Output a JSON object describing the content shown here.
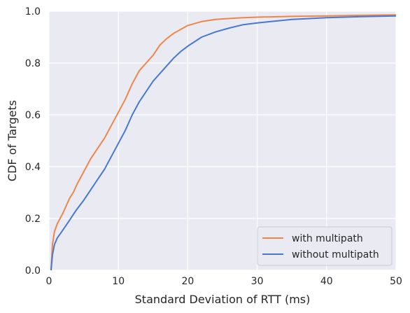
{
  "chart_data": {
    "type": "line",
    "title": "",
    "xlabel": "Standard Deviation of RTT (ms)",
    "ylabel": "CDF of Targets",
    "xlim": [
      0,
      50
    ],
    "ylim": [
      0,
      1
    ],
    "xticks": [
      "0",
      "10",
      "20",
      "30",
      "40",
      "50"
    ],
    "yticks": [
      "0.0",
      "0.2",
      "0.4",
      "0.6",
      "0.8",
      "1.0"
    ],
    "grid": true,
    "legend_position": "bottom-right",
    "series": [
      {
        "name": "with multipath",
        "color": "#ee854a",
        "x": [
          0.3,
          0.5,
          0.8,
          1.2,
          1.6,
          2.0,
          2.5,
          3.0,
          3.5,
          4.0,
          5.0,
          6.0,
          7.0,
          8.0,
          9.0,
          10.0,
          11.0,
          12.0,
          13.0,
          14.0,
          15.0,
          16.0,
          17.0,
          18.0,
          19.0,
          20.0,
          22.0,
          24.0,
          26.0,
          28.0,
          30.0,
          35.0,
          40.0,
          45.0,
          50.0
        ],
        "y": [
          0.0,
          0.1,
          0.15,
          0.18,
          0.2,
          0.22,
          0.25,
          0.28,
          0.3,
          0.33,
          0.38,
          0.43,
          0.47,
          0.51,
          0.56,
          0.61,
          0.66,
          0.72,
          0.77,
          0.8,
          0.83,
          0.87,
          0.895,
          0.915,
          0.93,
          0.945,
          0.96,
          0.968,
          0.972,
          0.975,
          0.977,
          0.98,
          0.982,
          0.984,
          0.986
        ]
      },
      {
        "name": "without multipath",
        "color": "#4878d0",
        "x": [
          0.3,
          0.5,
          0.8,
          1.2,
          1.6,
          2.0,
          2.5,
          3.0,
          3.5,
          4.0,
          5.0,
          6.0,
          7.0,
          8.0,
          9.0,
          10.0,
          11.0,
          12.0,
          13.0,
          14.0,
          15.0,
          16.0,
          17.0,
          18.0,
          19.0,
          20.0,
          22.0,
          24.0,
          26.0,
          28.0,
          30.0,
          35.0,
          40.0,
          45.0,
          50.0
        ],
        "y": [
          0.0,
          0.06,
          0.1,
          0.125,
          0.14,
          0.155,
          0.175,
          0.195,
          0.215,
          0.235,
          0.27,
          0.31,
          0.35,
          0.39,
          0.44,
          0.49,
          0.54,
          0.6,
          0.65,
          0.69,
          0.73,
          0.76,
          0.79,
          0.82,
          0.845,
          0.865,
          0.9,
          0.92,
          0.935,
          0.948,
          0.955,
          0.968,
          0.975,
          0.979,
          0.982
        ]
      }
    ]
  }
}
